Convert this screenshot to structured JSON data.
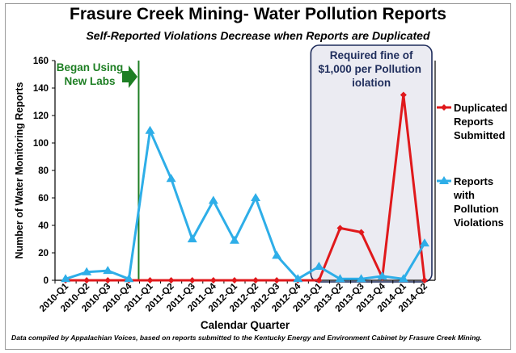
{
  "title": "Frasure Creek Mining- Water Pollution Reports",
  "subtitle": "Self-Reported Violations Decrease when Reports are Duplicated",
  "footnote": "Data compiled by Appalachian Voices, based on reports submitted to the Kentucky Energy and Environment Cabinet by Frasure Creek Mining.",
  "chart_data": {
    "type": "line",
    "xlabel": "Calendar Quarter",
    "ylabel": "Number of Water Monitoring Reports",
    "ylim": [
      0,
      160
    ],
    "yticks": [
      0,
      20,
      40,
      60,
      80,
      100,
      120,
      140,
      160
    ],
    "categories": [
      "2010-Q1",
      "2010-Q2",
      "2010-Q3",
      "2010-Q4",
      "2011-Q1",
      "2011-Q2",
      "2011-Q3",
      "2011-Q4",
      "2012-Q1",
      "2012-Q2",
      "2012-Q3",
      "2012-Q4",
      "2013-Q1",
      "2013-Q2",
      "2013-Q3",
      "2013-Q4",
      "2014-Q1",
      "2014-Q2"
    ],
    "grid": false,
    "legend": "right",
    "series": [
      {
        "name": "Duplicated Reports Submitted",
        "color": "#e0191c",
        "marker": "diamond",
        "values": [
          0,
          0,
          0,
          0,
          0,
          0,
          0,
          0,
          0,
          0,
          0,
          0,
          0,
          38,
          35,
          2,
          135,
          0
        ]
      },
      {
        "name": "Reports with Pollution Violations",
        "color": "#2eaee8",
        "marker": "triangle",
        "values": [
          1,
          6,
          7,
          1,
          109,
          74,
          30,
          58,
          29,
          60,
          18,
          1,
          10,
          1,
          1,
          3,
          1,
          27
        ]
      }
    ],
    "annotations": {
      "labs_line_label": "Began Using New Labs",
      "labs_line_category": "2011-Q1",
      "fine_box_label": "Required fine of $1,000 per Pollution Violation",
      "fine_box_range": [
        "2013-Q1",
        "2014-Q2"
      ]
    },
    "colors": {
      "labs_line": "#1e7f24",
      "fine_box_border": "#1f2d5c",
      "fine_box_fill": "#ebebf2",
      "labs_text": "#1e7f24"
    }
  }
}
